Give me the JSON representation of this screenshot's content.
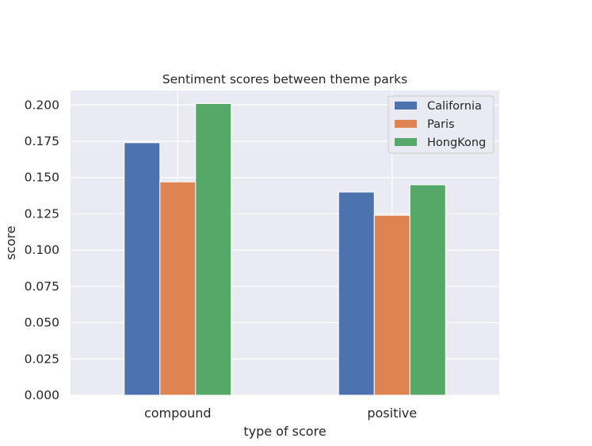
{
  "chart_data": {
    "type": "bar",
    "title": "Sentiment scores between theme parks",
    "xlabel": "type of score",
    "ylabel": "score",
    "categories": [
      "compound",
      "positive"
    ],
    "ylim": [
      0,
      0.21
    ],
    "yticks": [
      "0.000",
      "0.025",
      "0.050",
      "0.075",
      "0.100",
      "0.125",
      "0.150",
      "0.175",
      "0.200"
    ],
    "series": [
      {
        "name": "California",
        "color": "#4c72b0",
        "values": [
          0.174,
          0.14
        ]
      },
      {
        "name": "Paris",
        "color": "#dd8452",
        "values": [
          0.147,
          0.124
        ]
      },
      {
        "name": "HongKong",
        "color": "#55a868",
        "values": [
          0.201,
          0.145
        ]
      }
    ],
    "grid": true,
    "legend_position": "top-right",
    "background_color": "#eaeaf2"
  }
}
